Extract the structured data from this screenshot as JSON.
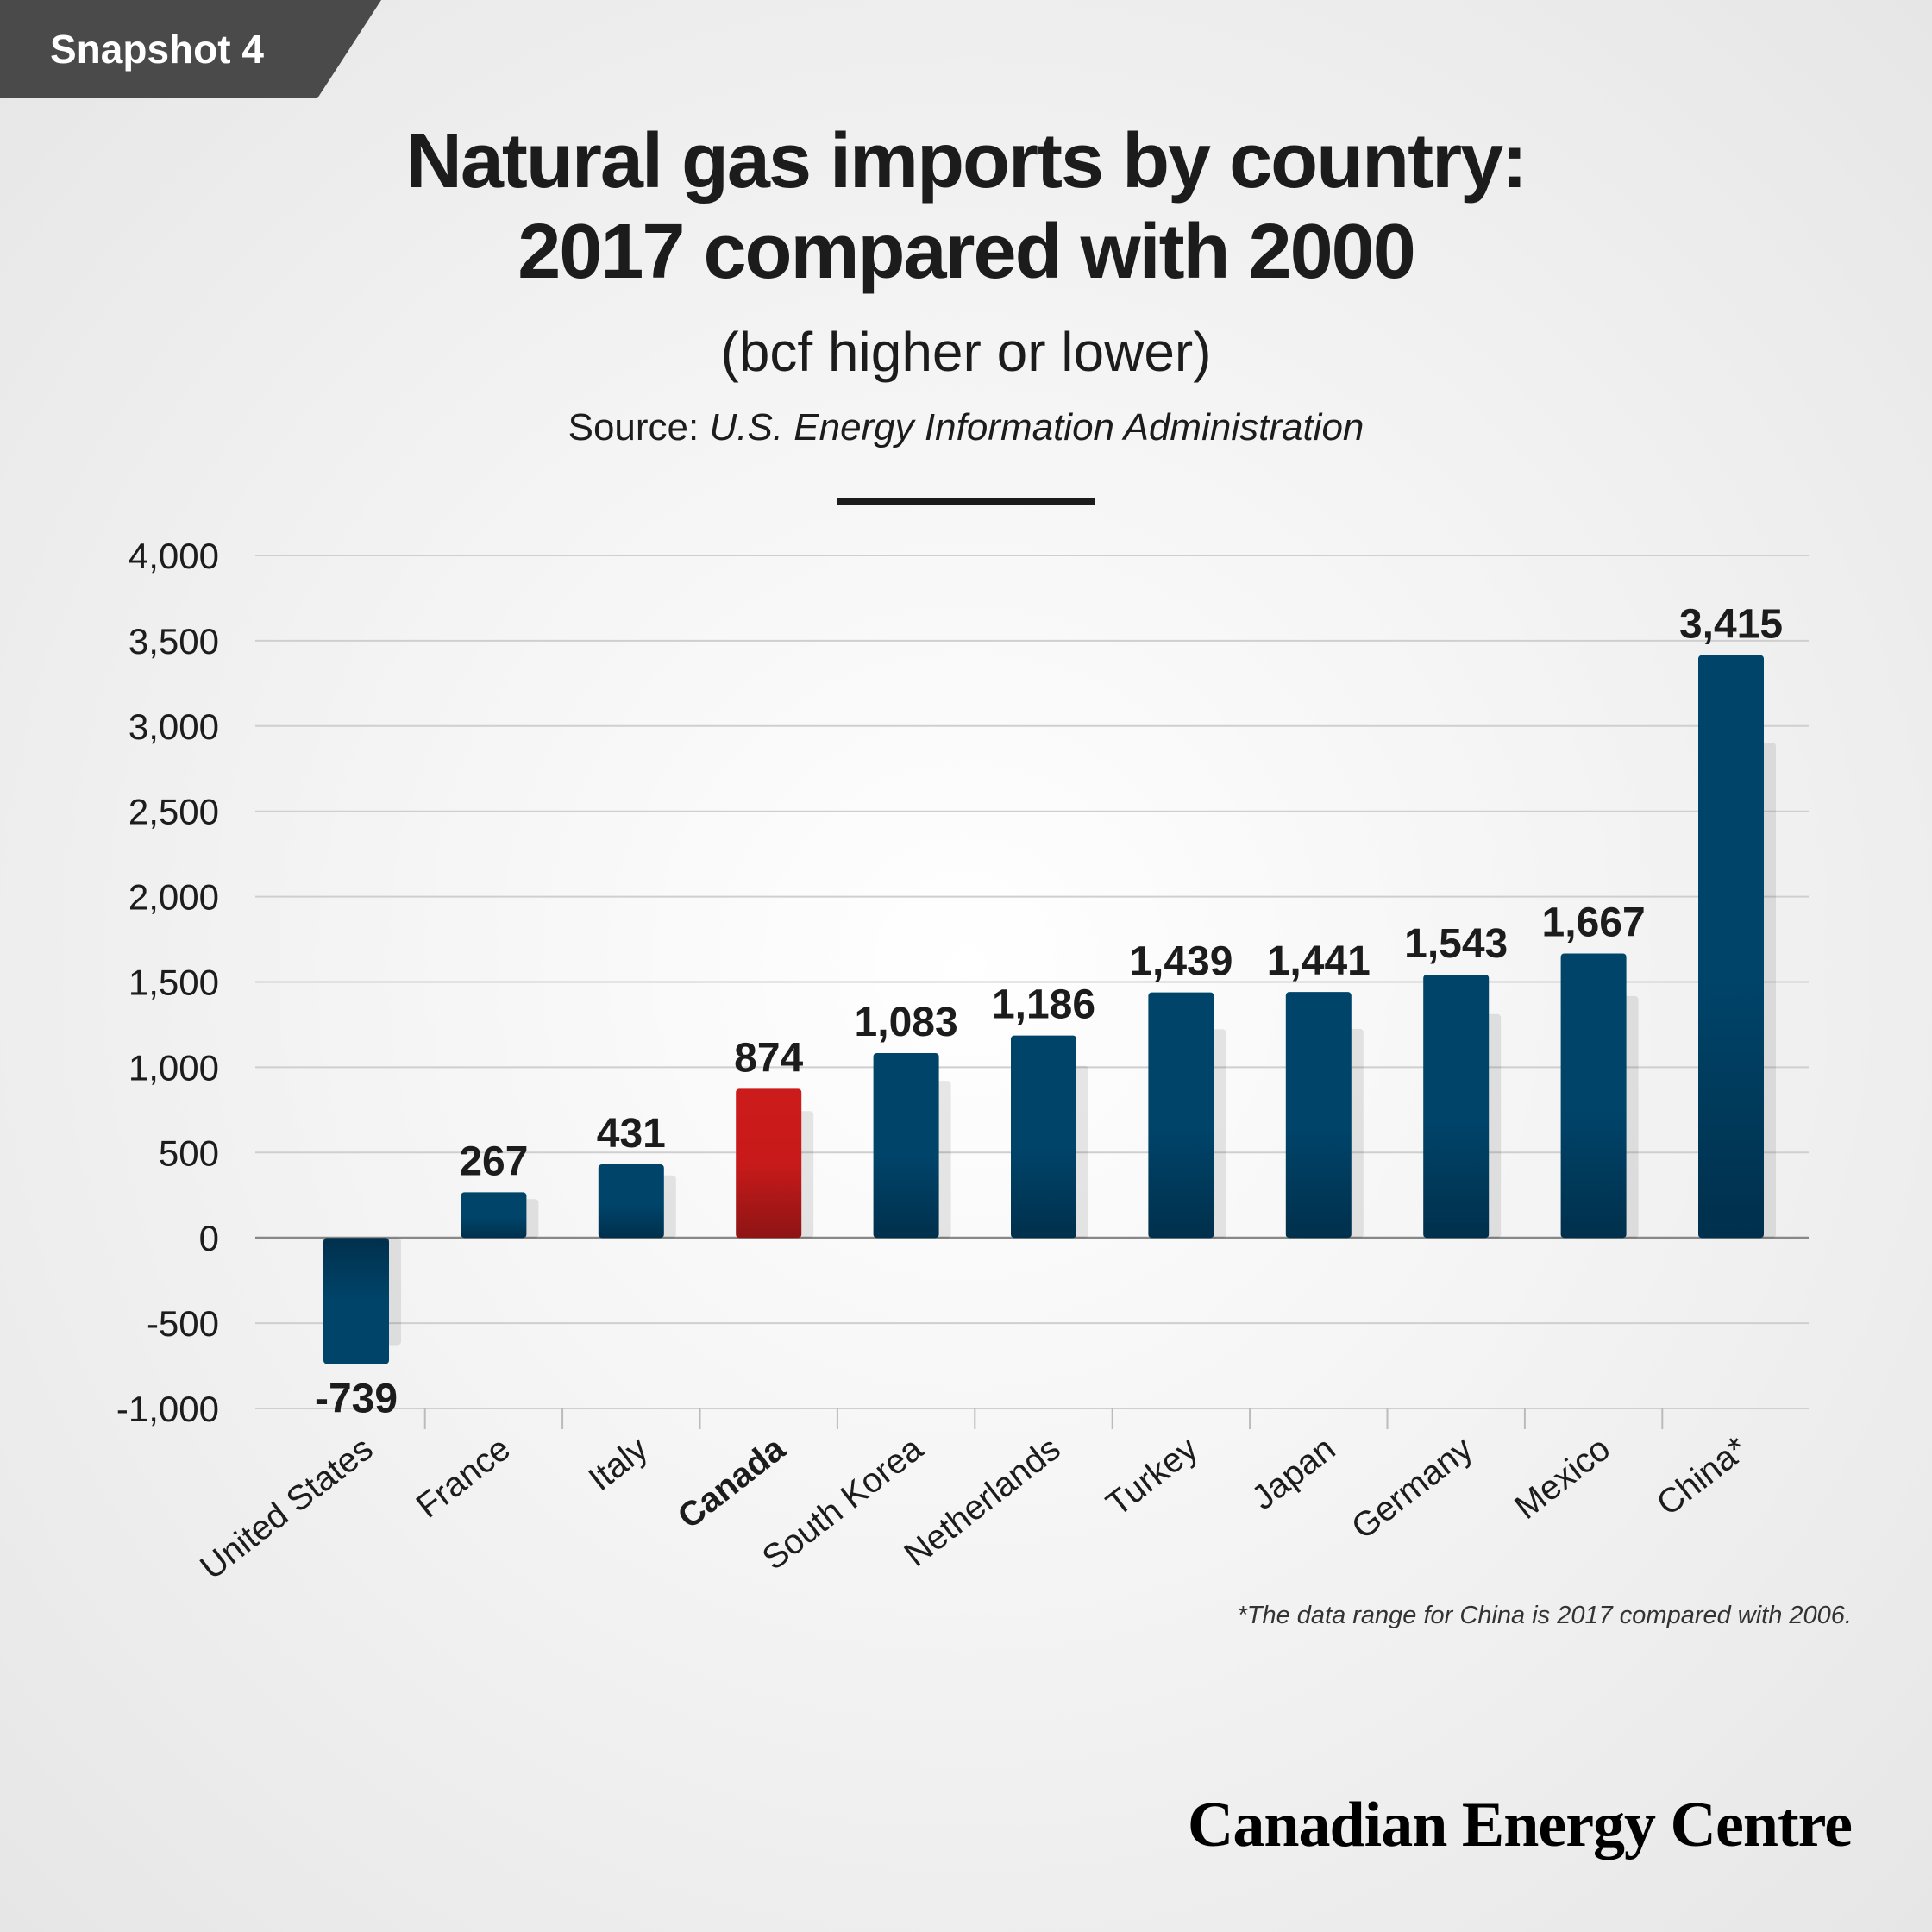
{
  "badge": "Snapshot 4",
  "title_line1": "Natural gas imports by country:",
  "title_line2": "2017 compared with 2000",
  "subtitle": "(bcf higher or lower)",
  "source_prefix": "Source: ",
  "source_name": "U.S. Energy Information Administration",
  "footnote": "*The data range for China is 2017 compared with 2006.",
  "logo": "Canadian Energy Centre",
  "colors": {
    "bar": "#00446a",
    "bar_dark": "#00304c",
    "highlight": "#cc1b1b",
    "highlight_dark": "#8e1414",
    "text": "#1c1c1c",
    "badge_bg": "#4a4a4a"
  },
  "chart_data": {
    "type": "bar",
    "categories": [
      "United States",
      "France",
      "Italy",
      "Canada",
      "South Korea",
      "Netherlands",
      "Turkey",
      "Japan",
      "Germany",
      "Mexico",
      "China*"
    ],
    "values": [
      -739,
      267,
      431,
      874,
      1083,
      1186,
      1439,
      1441,
      1543,
      1667,
      3415
    ],
    "value_labels": [
      "-739",
      "267",
      "431",
      "874",
      "1,083",
      "1,186",
      "1,439",
      "1,441",
      "1,543",
      "1,667",
      "3,415"
    ],
    "highlight": "Canada",
    "ylim": [
      -1000,
      4000
    ],
    "yticks": [
      4000,
      3500,
      3000,
      2500,
      2000,
      1500,
      1000,
      500,
      0,
      -500,
      -1000
    ],
    "ytick_labels": [
      "4,000",
      "3,500",
      "3,000",
      "2,500",
      "2,000",
      "1,500",
      "1,000",
      "500",
      "0",
      "-500",
      "-1,000"
    ],
    "grid": true,
    "xlabel": "",
    "ylabel": ""
  }
}
